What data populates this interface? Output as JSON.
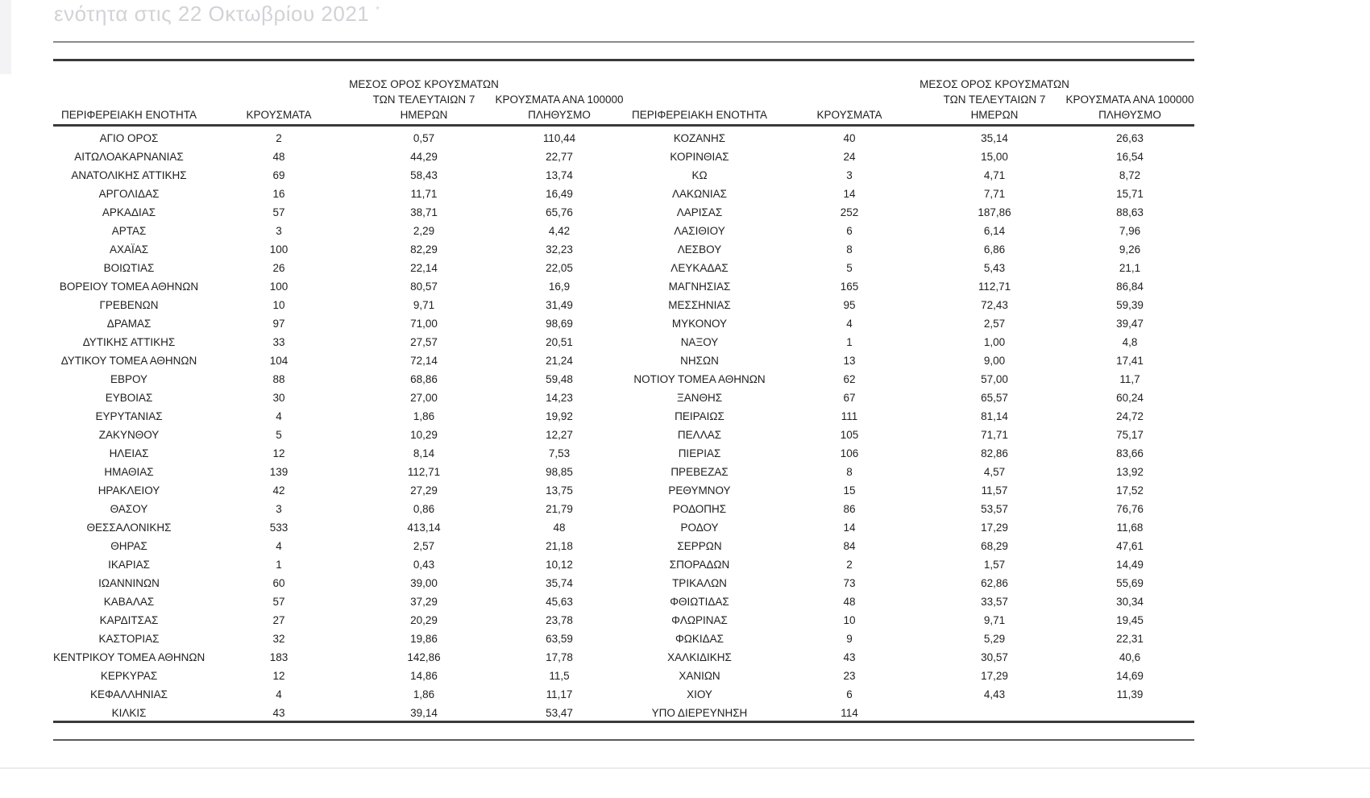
{
  "page": {
    "title_fragment": "ενότητα στις 22 Οκτωβρίου 2021",
    "title_superscript": "*"
  },
  "colors": {
    "text": "#1f1f1f",
    "rule_dark": "#3a3a3a",
    "rule_gray": "#8a8a8a",
    "title_faded": "#d2d2d7"
  },
  "table": {
    "headers": {
      "region": "ΠΕΡΙΦΕΡΕΙΑΚΗ ΕΝΟΤΗΤΑ",
      "cases": "ΚΡΟΥΣΜΑΤΑ",
      "avg7_lines": [
        "ΜΕΣΟΣ ΟΡΟΣ ΚΡΟΥΣΜΑΤΩΝ",
        "ΤΩΝ ΤΕΛΕΥΤΑΙΩΝ 7",
        "ΗΜΕΡΩΝ"
      ],
      "per100k_lines": [
        "ΚΡΟΥΣΜΑΤΑ ΑΝΑ 100000",
        "ΠΛΗΘΥΣΜΟ"
      ]
    },
    "left_rows": [
      [
        "ΑΓΙΟ ΟΡΟΣ",
        "2",
        "0,57",
        "110,44"
      ],
      [
        "ΑΙΤΩΛΟΑΚΑΡΝΑΝΙΑΣ",
        "48",
        "44,29",
        "22,77"
      ],
      [
        "ΑΝΑΤΟΛΙΚΗΣ ΑΤΤΙΚΗΣ",
        "69",
        "58,43",
        "13,74"
      ],
      [
        "ΑΡΓΟΛΙΔΑΣ",
        "16",
        "11,71",
        "16,49"
      ],
      [
        "ΑΡΚΑΔΙΑΣ",
        "57",
        "38,71",
        "65,76"
      ],
      [
        "ΑΡΤΑΣ",
        "3",
        "2,29",
        "4,42"
      ],
      [
        "ΑΧΑΪΑΣ",
        "100",
        "82,29",
        "32,23"
      ],
      [
        "ΒΟΙΩΤΙΑΣ",
        "26",
        "22,14",
        "22,05"
      ],
      [
        "ΒΟΡΕΙΟΥ ΤΟΜΕΑ ΑΘΗΝΩΝ",
        "100",
        "80,57",
        "16,9"
      ],
      [
        "ΓΡΕΒΕΝΩΝ",
        "10",
        "9,71",
        "31,49"
      ],
      [
        "ΔΡΑΜΑΣ",
        "97",
        "71,00",
        "98,69"
      ],
      [
        "ΔΥΤΙΚΗΣ ΑΤΤΙΚΗΣ",
        "33",
        "27,57",
        "20,51"
      ],
      [
        "ΔΥΤΙΚΟΥ ΤΟΜΕΑ ΑΘΗΝΩΝ",
        "104",
        "72,14",
        "21,24"
      ],
      [
        "ΕΒΡΟΥ",
        "88",
        "68,86",
        "59,48"
      ],
      [
        "ΕΥΒΟΙΑΣ",
        "30",
        "27,00",
        "14,23"
      ],
      [
        "ΕΥΡΥΤΑΝΙΑΣ",
        "4",
        "1,86",
        "19,92"
      ],
      [
        "ΖΑΚΥΝΘΟΥ",
        "5",
        "10,29",
        "12,27"
      ],
      [
        "ΗΛΕΙΑΣ",
        "12",
        "8,14",
        "7,53"
      ],
      [
        "ΗΜΑΘΙΑΣ",
        "139",
        "112,71",
        "98,85"
      ],
      [
        "ΗΡΑΚΛΕΙΟΥ",
        "42",
        "27,29",
        "13,75"
      ],
      [
        "ΘΑΣΟΥ",
        "3",
        "0,86",
        "21,79"
      ],
      [
        "ΘΕΣΣΑΛΟΝΙΚΗΣ",
        "533",
        "413,14",
        "48"
      ],
      [
        "ΘΗΡΑΣ",
        "4",
        "2,57",
        "21,18"
      ],
      [
        "ΙΚΑΡΙΑΣ",
        "1",
        "0,43",
        "10,12"
      ],
      [
        "ΙΩΑΝΝΙΝΩΝ",
        "60",
        "39,00",
        "35,74"
      ],
      [
        "ΚΑΒΑΛΑΣ",
        "57",
        "37,29",
        "45,63"
      ],
      [
        "ΚΑΡΔΙΤΣΑΣ",
        "27",
        "20,29",
        "23,78"
      ],
      [
        "ΚΑΣΤΟΡΙΑΣ",
        "32",
        "19,86",
        "63,59"
      ],
      [
        "ΚΕΝΤΡΙΚΟΥ ΤΟΜΕΑ ΑΘΗΝΩΝ",
        "183",
        "142,86",
        "17,78"
      ],
      [
        "ΚΕΡΚΥΡΑΣ",
        "12",
        "14,86",
        "11,5"
      ],
      [
        "ΚΕΦΑΛΛΗΝΙΑΣ",
        "4",
        "1,86",
        "11,17"
      ],
      [
        "ΚΙΛΚΙΣ",
        "43",
        "39,14",
        "53,47"
      ]
    ],
    "right_rows": [
      [
        "ΚΟΖΑΝΗΣ",
        "40",
        "35,14",
        "26,63"
      ],
      [
        "ΚΟΡΙΝΘΙΑΣ",
        "24",
        "15,00",
        "16,54"
      ],
      [
        "ΚΩ",
        "3",
        "4,71",
        "8,72"
      ],
      [
        "ΛΑΚΩΝΙΑΣ",
        "14",
        "7,71",
        "15,71"
      ],
      [
        "ΛΑΡΙΣΑΣ",
        "252",
        "187,86",
        "88,63"
      ],
      [
        "ΛΑΣΙΘΙΟΥ",
        "6",
        "6,14",
        "7,96"
      ],
      [
        "ΛΕΣΒΟΥ",
        "8",
        "6,86",
        "9,26"
      ],
      [
        "ΛΕΥΚΑΔΑΣ",
        "5",
        "5,43",
        "21,1"
      ],
      [
        "ΜΑΓΝΗΣΙΑΣ",
        "165",
        "112,71",
        "86,84"
      ],
      [
        "ΜΕΣΣΗΝΙΑΣ",
        "95",
        "72,43",
        "59,39"
      ],
      [
        "ΜΥΚΟΝΟΥ",
        "4",
        "2,57",
        "39,47"
      ],
      [
        "ΝΑΞΟΥ",
        "1",
        "1,00",
        "4,8"
      ],
      [
        "ΝΗΣΩΝ",
        "13",
        "9,00",
        "17,41"
      ],
      [
        "ΝΟΤΙΟΥ ΤΟΜΕΑ ΑΘΗΝΩΝ",
        "62",
        "57,00",
        "11,7"
      ],
      [
        "ΞΑΝΘΗΣ",
        "67",
        "65,57",
        "60,24"
      ],
      [
        "ΠΕΙΡΑΙΩΣ",
        "111",
        "81,14",
        "24,72"
      ],
      [
        "ΠΕΛΛΑΣ",
        "105",
        "71,71",
        "75,17"
      ],
      [
        "ΠΙΕΡΙΑΣ",
        "106",
        "82,86",
        "83,66"
      ],
      [
        "ΠΡΕΒΕΖΑΣ",
        "8",
        "4,57",
        "13,92"
      ],
      [
        "ΡΕΘΥΜΝΟΥ",
        "15",
        "11,57",
        "17,52"
      ],
      [
        "ΡΟΔΟΠΗΣ",
        "86",
        "53,57",
        "76,76"
      ],
      [
        "ΡΟΔΟΥ",
        "14",
        "17,29",
        "11,68"
      ],
      [
        "ΣΕΡΡΩΝ",
        "84",
        "68,29",
        "47,61"
      ],
      [
        "ΣΠΟΡΑΔΩΝ",
        "2",
        "1,57",
        "14,49"
      ],
      [
        "ΤΡΙΚΑΛΩΝ",
        "73",
        "62,86",
        "55,69"
      ],
      [
        "ΦΘΙΩΤΙΔΑΣ",
        "48",
        "33,57",
        "30,34"
      ],
      [
        "ΦΛΩΡΙΝΑΣ",
        "10",
        "9,71",
        "19,45"
      ],
      [
        "ΦΩΚΙΔΑΣ",
        "9",
        "5,29",
        "22,31"
      ],
      [
        "ΧΑΛΚΙΔΙΚΗΣ",
        "43",
        "30,57",
        "40,6"
      ],
      [
        "ΧΑΝΙΩΝ",
        "23",
        "17,29",
        "14,69"
      ],
      [
        "ΧΙΟΥ",
        "6",
        "4,43",
        "11,39"
      ],
      [
        "ΥΠΟ ΔΙΕΡΕΥΝΗΣΗ",
        "114",
        "",
        ""
      ]
    ]
  }
}
